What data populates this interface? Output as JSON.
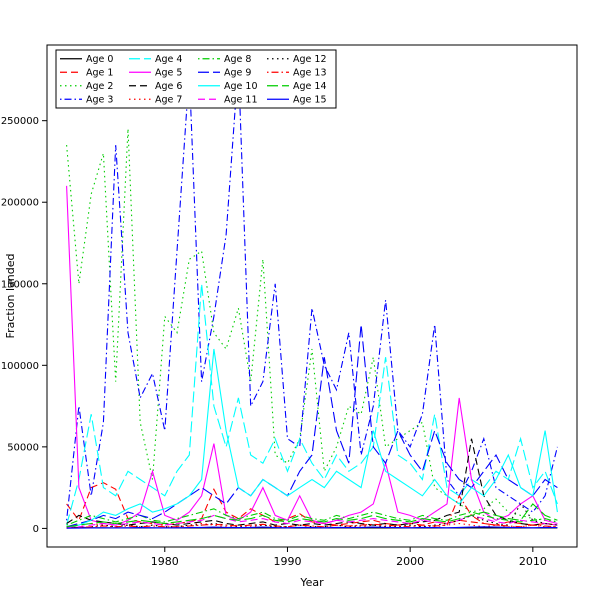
{
  "figure": {
    "background": "#ffffff"
  },
  "chart_data": {
    "type": "line",
    "title": "",
    "xlabel": "Year",
    "ylabel": "Fraction landed",
    "xlim": [
      1972,
      2012
    ],
    "ylim": [
      0,
      285000
    ],
    "x_ticks": [
      1980,
      1990,
      2000,
      2010
    ],
    "y_ticks": [
      0,
      50000,
      100000,
      150000,
      200000,
      250000
    ],
    "grid": false,
    "legend_position": "top-left",
    "legend_columns": 4,
    "x": [
      1972,
      1973,
      1974,
      1975,
      1976,
      1977,
      1978,
      1979,
      1980,
      1981,
      1982,
      1983,
      1984,
      1985,
      1986,
      1987,
      1988,
      1989,
      1990,
      1991,
      1992,
      1993,
      1994,
      1995,
      1996,
      1997,
      1998,
      1999,
      2000,
      2001,
      2002,
      2003,
      2004,
      2005,
      2006,
      2007,
      2008,
      2009,
      2010,
      2011,
      2012
    ],
    "series": [
      {
        "name": "Age 0",
        "color": "#000000",
        "linetype": "solid",
        "values": [
          1000,
          500,
          400,
          300,
          300,
          300,
          300,
          300,
          300,
          300,
          300,
          300,
          300,
          300,
          300,
          300,
          300,
          300,
          300,
          300,
          300,
          300,
          300,
          300,
          300,
          300,
          300,
          300,
          300,
          300,
          300,
          300,
          300,
          300,
          300,
          300,
          300,
          300,
          300,
          300,
          300
        ]
      },
      {
        "name": "Age 1",
        "color": "#ff0000",
        "linetype": "dashed",
        "values": [
          15000,
          5000,
          25000,
          28000,
          24000,
          6000,
          4000,
          3000,
          2000,
          3000,
          4000,
          6000,
          24000,
          10000,
          6000,
          12000,
          8000,
          4000,
          6000,
          9000,
          4000,
          3000,
          2000,
          3000,
          4000,
          5000,
          3000,
          2000,
          3000,
          2000,
          4000,
          3000,
          5000,
          4000,
          3000,
          2000,
          4000,
          3000,
          2000,
          3000,
          2000
        ]
      },
      {
        "name": "Age 2",
        "color": "#00cd00",
        "linetype": "dotted",
        "values": [
          235000,
          150000,
          205000,
          230000,
          90000,
          245000,
          65000,
          30000,
          130000,
          120000,
          165000,
          170000,
          120000,
          110000,
          135000,
          90000,
          165000,
          45000,
          40000,
          55000,
          110000,
          35000,
          50000,
          75000,
          70000,
          105000,
          50000,
          55000,
          60000,
          65000,
          25000,
          20000,
          15000,
          10000,
          12000,
          18000,
          10000,
          8000,
          6000,
          5000,
          4000
        ]
      },
      {
        "name": "Age 3",
        "color": "#0000ff",
        "linetype": "dotdash",
        "values": [
          5000,
          75000,
          20000,
          65000,
          235000,
          120000,
          80000,
          95000,
          60000,
          170000,
          280000,
          90000,
          130000,
          180000,
          285000,
          75000,
          90000,
          150000,
          55000,
          50000,
          135000,
          100000,
          85000,
          120000,
          45000,
          75000,
          140000,
          60000,
          50000,
          70000,
          125000,
          30000,
          20000,
          35000,
          55000,
          25000,
          20000,
          15000,
          10000,
          20000,
          50000
        ]
      },
      {
        "name": "Age 4",
        "color": "#00ffff",
        "linetype": "longdash",
        "values": [
          2000,
          30000,
          70000,
          25000,
          20000,
          35000,
          30000,
          25000,
          20000,
          35000,
          45000,
          150000,
          75000,
          50000,
          80000,
          45000,
          40000,
          55000,
          35000,
          55000,
          40000,
          30000,
          45000,
          35000,
          40000,
          50000,
          105000,
          45000,
          40000,
          30000,
          70000,
          25000,
          20000,
          30000,
          25000,
          35000,
          30000,
          55000,
          25000,
          35000,
          15000
        ]
      },
      {
        "name": "Age 5",
        "color": "#ff00ff",
        "linetype": "solid",
        "values": [
          210000,
          25000,
          5000,
          3000,
          2000,
          5000,
          10000,
          35000,
          8000,
          5000,
          10000,
          20000,
          52000,
          8000,
          5000,
          10000,
          25000,
          8000,
          5000,
          20000,
          5000,
          3000,
          5000,
          8000,
          10000,
          15000,
          40000,
          10000,
          8000,
          5000,
          10000,
          15000,
          80000,
          30000,
          10000,
          5000,
          8000,
          15000,
          20000,
          5000,
          3000
        ]
      },
      {
        "name": "Age 6",
        "color": "#000000",
        "linetype": "dashed",
        "values": [
          3000,
          8000,
          5000,
          4000,
          3000,
          2000,
          3000,
          4000,
          3000,
          2000,
          3000,
          4000,
          5000,
          3000,
          2000,
          3000,
          4000,
          2000,
          3000,
          2000,
          3000,
          2000,
          3000,
          4000,
          3000,
          2000,
          3000,
          2000,
          3000,
          4000,
          5000,
          8000,
          10000,
          55000,
          20000,
          8000,
          5000,
          3000,
          2000,
          3000,
          2000
        ]
      },
      {
        "name": "Age 7",
        "color": "#ff0000",
        "linetype": "dotted",
        "values": [
          1000,
          2000,
          3000,
          2000,
          1000,
          2000,
          1000,
          2000,
          1000,
          1000,
          2000,
          3000,
          2000,
          1000,
          2000,
          1000,
          2000,
          1000,
          1000,
          2000,
          1000,
          1000,
          2000,
          1000,
          1000,
          2000,
          1000,
          1000,
          2000,
          1000,
          1000,
          2000,
          3000,
          2000,
          1000,
          2000,
          1000,
          1000,
          2000,
          1000,
          1000
        ]
      },
      {
        "name": "Age 8",
        "color": "#00cd00",
        "linetype": "dotdash",
        "values": [
          2000,
          5000,
          8000,
          6000,
          4000,
          6000,
          8000,
          5000,
          4000,
          6000,
          8000,
          10000,
          12000,
          8000,
          6000,
          8000,
          10000,
          6000,
          5000,
          8000,
          6000,
          5000,
          8000,
          6000,
          8000,
          10000,
          8000,
          6000,
          5000,
          8000,
          6000,
          5000,
          8000,
          10000,
          8000,
          6000,
          5000,
          4000,
          5000,
          6000,
          4000
        ]
      },
      {
        "name": "Age 9",
        "color": "#0000ff",
        "linetype": "longdash",
        "values": [
          1000,
          3000,
          5000,
          8000,
          6000,
          10000,
          8000,
          6000,
          10000,
          15000,
          20000,
          25000,
          20000,
          15000,
          25000,
          20000,
          30000,
          25000,
          20000,
          35000,
          45000,
          105000,
          60000,
          40000,
          125000,
          50000,
          40000,
          60000,
          45000,
          35000,
          60000,
          40000,
          30000,
          25000,
          35000,
          45000,
          30000,
          25000,
          20000,
          30000,
          25000
        ]
      },
      {
        "name": "Age 10",
        "color": "#00ffff",
        "linetype": "solid",
        "values": [
          500,
          2000,
          5000,
          10000,
          8000,
          12000,
          15000,
          10000,
          12000,
          15000,
          20000,
          30000,
          110000,
          60000,
          25000,
          20000,
          30000,
          25000,
          20000,
          25000,
          30000,
          25000,
          35000,
          30000,
          25000,
          60000,
          35000,
          30000,
          25000,
          20000,
          30000,
          20000,
          15000,
          25000,
          20000,
          30000,
          45000,
          25000,
          20000,
          60000,
          10000
        ]
      },
      {
        "name": "Age 11",
        "color": "#ff00ff",
        "linetype": "dashed",
        "values": [
          500,
          1000,
          2000,
          3000,
          2000,
          3000,
          4000,
          3000,
          2000,
          3000,
          4000,
          5000,
          8000,
          6000,
          4000,
          5000,
          6000,
          4000,
          3000,
          5000,
          4000,
          3000,
          5000,
          4000,
          5000,
          6000,
          5000,
          4000,
          3000,
          5000,
          4000,
          3000,
          5000,
          8000,
          6000,
          4000,
          3000,
          5000,
          4000,
          3000,
          2000
        ]
      },
      {
        "name": "Age 12",
        "color": "#000000",
        "linetype": "dotted",
        "values": [
          300,
          500,
          1000,
          2000,
          1000,
          2000,
          1000,
          2000,
          1000,
          1000,
          2000,
          2000,
          3000,
          2000,
          1000,
          2000,
          2000,
          1000,
          1000,
          2000,
          1000,
          1000,
          2000,
          1000,
          2000,
          2000,
          1000,
          1000,
          2000,
          1000,
          2000,
          3000,
          5000,
          8000,
          5000,
          3000,
          2000,
          15000,
          5000,
          3000,
          2000
        ]
      },
      {
        "name": "Age 13",
        "color": "#ff0000",
        "linetype": "dotdash",
        "values": [
          200,
          500,
          1000,
          1500,
          1000,
          1500,
          1000,
          1500,
          1000,
          1000,
          1500,
          2000,
          2500,
          2000,
          1500,
          2000,
          2500,
          1500,
          1000,
          2000,
          1500,
          1000,
          2000,
          1500,
          2000,
          2500,
          2000,
          1500,
          1000,
          2000,
          1500,
          2000,
          20000,
          8000,
          3000,
          2000,
          1500,
          1000,
          2000,
          1500,
          1000
        ]
      },
      {
        "name": "Age 14",
        "color": "#00cd00",
        "linetype": "longdash",
        "values": [
          1000,
          2000,
          3000,
          4000,
          3000,
          4000,
          5000,
          4000,
          3000,
          4000,
          5000,
          6000,
          8000,
          6000,
          5000,
          6000,
          8000,
          5000,
          4000,
          6000,
          5000,
          4000,
          6000,
          5000,
          6000,
          8000,
          6000,
          5000,
          4000,
          6000,
          5000,
          4000,
          6000,
          8000,
          10000,
          8000,
          6000,
          5000,
          15000,
          8000,
          5000
        ]
      },
      {
        "name": "Age 15",
        "color": "#0000ff",
        "linetype": "solid",
        "values": [
          100,
          200,
          300,
          400,
          300,
          400,
          500,
          400,
          300,
          400,
          500,
          600,
          800,
          600,
          500,
          600,
          800,
          500,
          400,
          600,
          500,
          400,
          600,
          500,
          600,
          800,
          600,
          500,
          400,
          600,
          500,
          400,
          600,
          800,
          1000,
          800,
          600,
          500,
          400,
          600,
          500
        ]
      }
    ]
  }
}
